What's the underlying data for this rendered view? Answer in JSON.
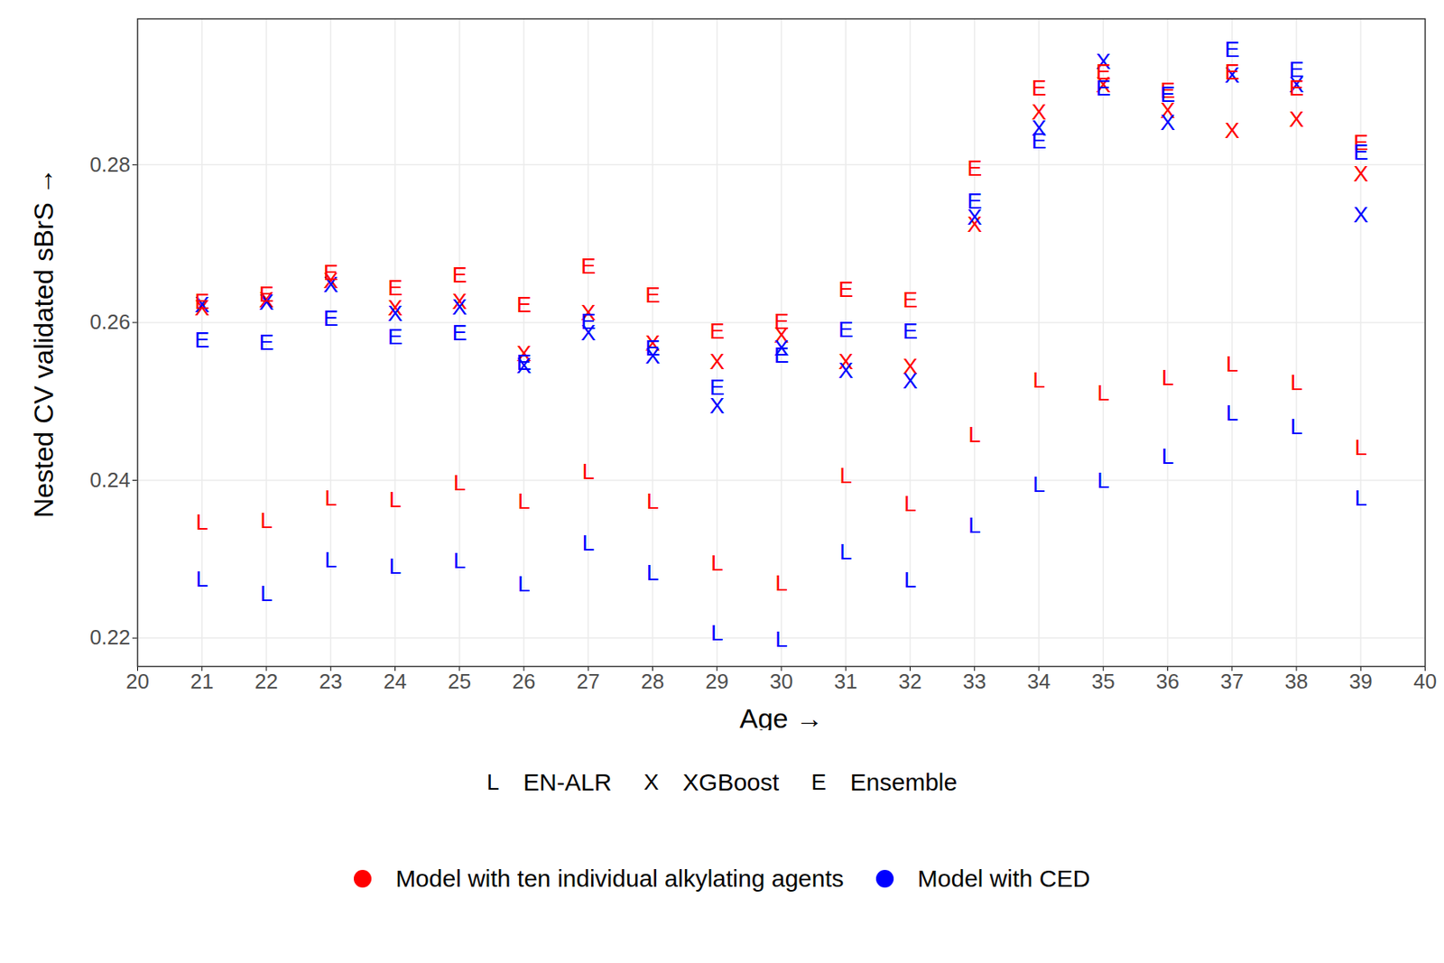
{
  "chart_data": {
    "type": "scatter",
    "x_label": "Age",
    "y_label": "Nested CV validated sBrS",
    "xlim": [
      20,
      40
    ],
    "xticks": [
      20,
      21,
      22,
      23,
      24,
      25,
      26,
      27,
      28,
      29,
      30,
      31,
      32,
      33,
      34,
      35,
      36,
      37,
      38,
      39,
      40
    ],
    "ylim": [
      0.2164,
      0.2985
    ],
    "yticks": [
      0.22,
      0.24,
      0.26,
      0.28
    ],
    "grid": true,
    "x": [
      21,
      22,
      23,
      24,
      25,
      26,
      27,
      28,
      29,
      30,
      31,
      32,
      33,
      34,
      35,
      36,
      37,
      38,
      39
    ],
    "markers": [
      {
        "name": "EN-ALR",
        "marker": "L"
      },
      {
        "name": "XGBoost",
        "marker": "X"
      },
      {
        "name": "Ensemble",
        "marker": "E"
      }
    ],
    "groups": [
      {
        "name": "Model with ten individual alkylating agents",
        "color": "#ff0000"
      },
      {
        "name": "Model with CED",
        "color": "#0000ff"
      }
    ],
    "series": [
      {
        "model": "EN-ALR",
        "group": "Model with ten individual alkylating agents",
        "values": [
          0.2347,
          0.2349,
          0.2377,
          0.2375,
          0.2396,
          0.2373,
          0.2411,
          0.2373,
          0.2295,
          0.2269,
          0.2406,
          0.237,
          0.2457,
          0.2527,
          0.251,
          0.253,
          0.2547,
          0.2524,
          0.2441
        ]
      },
      {
        "model": "EN-ALR",
        "group": "Model with CED",
        "values": [
          0.2274,
          0.2256,
          0.2299,
          0.2291,
          0.2298,
          0.2268,
          0.232,
          0.2282,
          0.2206,
          0.2198,
          0.2309,
          0.2273,
          0.2343,
          0.2394,
          0.2399,
          0.243,
          0.2485,
          0.2468,
          0.2377
        ]
      },
      {
        "model": "XGBoost",
        "group": "Model with ten individual alkylating agents",
        "values": [
          0.2618,
          0.2628,
          0.2653,
          0.2618,
          0.2626,
          0.256,
          0.2612,
          0.2573,
          0.255,
          0.2584,
          0.255,
          0.2544,
          0.2724,
          0.2866,
          0.2901,
          0.2868,
          0.2843,
          0.2857,
          0.2788
        ]
      },
      {
        "model": "XGBoost",
        "group": "Model with CED",
        "values": [
          0.2622,
          0.2625,
          0.2648,
          0.2611,
          0.2619,
          0.2545,
          0.2587,
          0.2557,
          0.2494,
          0.2567,
          0.2539,
          0.2526,
          0.2733,
          0.2846,
          0.2931,
          0.2853,
          0.2913,
          0.2901,
          0.2736
        ]
      },
      {
        "model": "Ensemble",
        "group": "Model with ten individual alkylating agents",
        "values": [
          0.2626,
          0.2636,
          0.2663,
          0.2644,
          0.266,
          0.2622,
          0.2671,
          0.2634,
          0.2589,
          0.2601,
          0.2642,
          0.2628,
          0.2795,
          0.2897,
          0.2917,
          0.2894,
          0.2917,
          0.2897,
          0.2828
        ]
      },
      {
        "model": "Ensemble",
        "group": "Model with CED",
        "values": [
          0.2578,
          0.2574,
          0.2605,
          0.2582,
          0.2587,
          0.2549,
          0.2601,
          0.2567,
          0.2517,
          0.2558,
          0.2591,
          0.2589,
          0.2754,
          0.283,
          0.2897,
          0.2889,
          0.2946,
          0.292,
          0.2816
        ]
      }
    ]
  }
}
